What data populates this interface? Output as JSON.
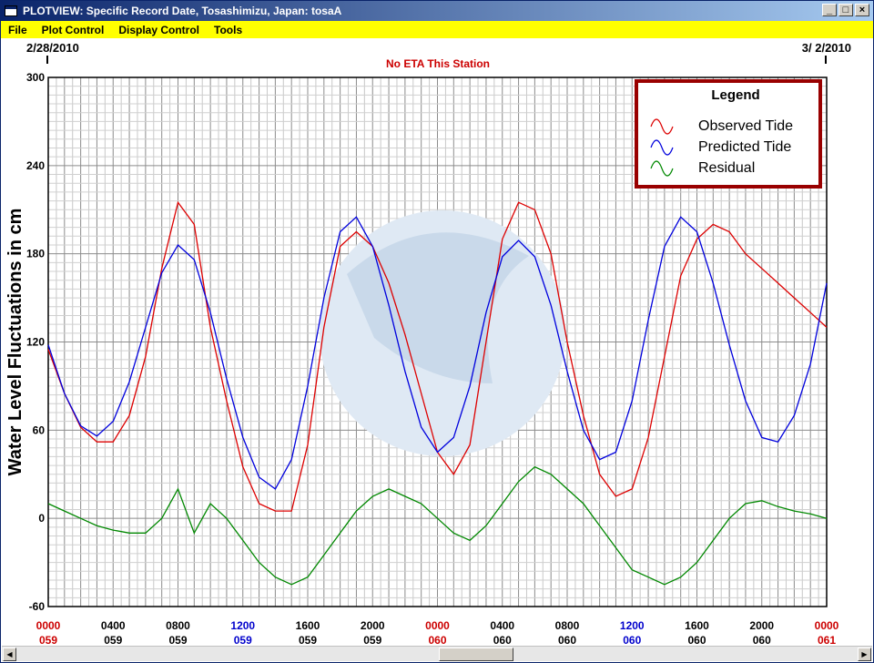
{
  "window": {
    "title": "PLOTVIEW: Specific Record Date, Tosashimizu, Japan: tosaA",
    "buttons": [
      "_",
      "□",
      "×"
    ]
  },
  "menu": [
    "File",
    "Plot Control",
    "Display Control",
    "Tools"
  ],
  "header": {
    "date_start": "2/28/2010",
    "date_end": "3/ 2/2010",
    "notice": "No ETA This Station"
  },
  "colors": {
    "observed": "#dd0000",
    "predicted": "#0000dd",
    "residual": "#008800",
    "legend_border": "#990000",
    "title_bar": "#0a246a",
    "menu_bar": "#ffff00"
  },
  "chart_data": {
    "type": "line",
    "ylabel": "Water Level Fluctuations in cm",
    "ylim": [
      -60,
      300
    ],
    "yticks": [
      -60,
      0,
      60,
      120,
      180,
      240,
      300
    ],
    "xlim_hours": [
      0,
      48
    ],
    "grid": true,
    "legend_title": "Legend",
    "legend_position": "top-right",
    "x_tick_labels": [
      {
        "time": "0000",
        "day": "059",
        "color": "#cc0000"
      },
      {
        "time": "0400",
        "day": "059",
        "color": "#000000"
      },
      {
        "time": "0800",
        "day": "059",
        "color": "#000000"
      },
      {
        "time": "1200",
        "day": "059",
        "color": "#0000cc"
      },
      {
        "time": "1600",
        "day": "059",
        "color": "#000000"
      },
      {
        "time": "2000",
        "day": "059",
        "color": "#000000"
      },
      {
        "time": "0000",
        "day": "060",
        "color": "#cc0000"
      },
      {
        "time": "0400",
        "day": "060",
        "color": "#000000"
      },
      {
        "time": "0800",
        "day": "060",
        "color": "#000000"
      },
      {
        "time": "1200",
        "day": "060",
        "color": "#0000cc"
      },
      {
        "time": "1600",
        "day": "060",
        "color": "#000000"
      },
      {
        "time": "2000",
        "day": "060",
        "color": "#000000"
      },
      {
        "time": "0000",
        "day": "061",
        "color": "#cc0000"
      }
    ],
    "series": [
      {
        "name": "Observed Tide",
        "color": "#dd0000",
        "x": [
          0,
          1,
          2,
          3,
          4,
          5,
          6,
          7,
          8,
          9,
          10,
          11,
          12,
          13,
          14,
          15,
          16,
          17,
          18,
          19,
          20,
          21,
          22,
          23,
          24,
          25,
          26,
          27,
          28,
          29,
          30,
          31,
          32,
          33,
          34,
          35,
          36,
          37,
          38,
          39,
          40,
          41,
          42,
          43,
          44,
          45,
          46,
          47,
          48
        ],
        "y": [
          115,
          85,
          62,
          52,
          52,
          70,
          110,
          170,
          215,
          200,
          130,
          80,
          35,
          10,
          5,
          5,
          50,
          130,
          185,
          195,
          185,
          160,
          125,
          85,
          45,
          30,
          50,
          120,
          190,
          215,
          210,
          180,
          120,
          70,
          30,
          15,
          20,
          55,
          110,
          165,
          190,
          200,
          195,
          180,
          170,
          160,
          150,
          140,
          130
        ]
      },
      {
        "name": "Predicted Tide",
        "color": "#0000dd",
        "x": [
          0,
          1,
          2,
          3,
          4,
          5,
          6,
          7,
          8,
          9,
          10,
          11,
          12,
          13,
          14,
          15,
          16,
          17,
          18,
          19,
          20,
          21,
          22,
          23,
          24,
          25,
          26,
          27,
          28,
          29,
          30,
          31,
          32,
          33,
          34,
          35,
          36,
          37,
          38,
          39,
          40,
          41,
          42,
          43,
          44,
          45,
          46,
          47,
          48
        ],
        "y": [
          118,
          85,
          63,
          56,
          66,
          93,
          130,
          167,
          186,
          176,
          140,
          95,
          55,
          28,
          20,
          40,
          90,
          150,
          195,
          205,
          185,
          145,
          100,
          62,
          45,
          55,
          90,
          140,
          178,
          189,
          178,
          145,
          100,
          60,
          40,
          45,
          80,
          135,
          185,
          205,
          195,
          160,
          118,
          80,
          55,
          52,
          70,
          105,
          160
        ]
      },
      {
        "name": "Residual",
        "color": "#008800",
        "x": [
          0,
          1,
          2,
          3,
          4,
          5,
          6,
          7,
          8,
          9,
          10,
          11,
          12,
          13,
          14,
          15,
          16,
          17,
          18,
          19,
          20,
          21,
          22,
          23,
          24,
          25,
          26,
          27,
          28,
          29,
          30,
          31,
          32,
          33,
          34,
          35,
          36,
          37,
          38,
          39,
          40,
          41,
          42,
          43,
          44,
          45,
          46,
          47,
          48
        ],
        "y": [
          10,
          5,
          0,
          -5,
          -8,
          -10,
          -10,
          0,
          20,
          -10,
          10,
          0,
          -15,
          -30,
          -40,
          -45,
          -40,
          -25,
          -10,
          5,
          15,
          20,
          15,
          10,
          0,
          -10,
          -15,
          -5,
          10,
          25,
          35,
          30,
          20,
          10,
          -5,
          -20,
          -35,
          -40,
          -45,
          -40,
          -30,
          -15,
          0,
          10,
          12,
          8,
          5,
          3,
          0
        ]
      }
    ]
  }
}
